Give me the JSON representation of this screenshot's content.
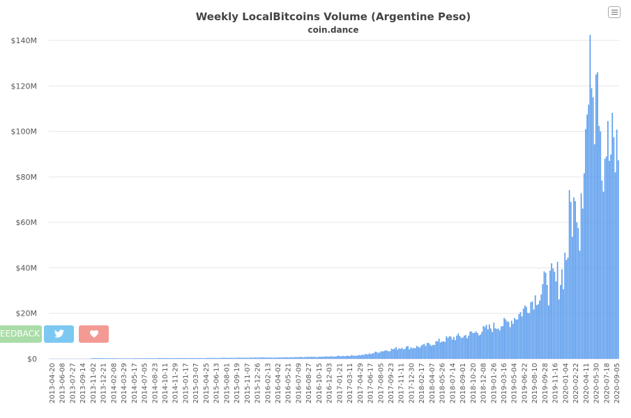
{
  "chart_data": {
    "type": "bar",
    "title": "Weekly LocalBitcoins Volume (Argentine Peso)",
    "subtitle": "coin.dance",
    "xlabel": "",
    "ylabel": "",
    "ylim": [
      0,
      140000000
    ],
    "y_ticks": [
      "$0",
      "$20M",
      "$40M",
      "$60M",
      "$80M",
      "$100M",
      "$120M",
      "$140M"
    ],
    "x_tick_labels": [
      "2013-04-20",
      "2013-06-08",
      "2013-07-27",
      "2013-09-14",
      "2013-11-02",
      "2013-12-21",
      "2014-02-08",
      "2014-03-29",
      "2014-05-17",
      "2014-07-05",
      "2014-08-23",
      "2014-10-11",
      "2014-11-29",
      "2015-01-17",
      "2015-03-07",
      "2015-04-25",
      "2015-06-13",
      "2015-08-01",
      "2015-09-19",
      "2015-11-07",
      "2015-12-26",
      "2016-02-13",
      "2016-04-02",
      "2016-05-21",
      "2016-07-09",
      "2016-08-27",
      "2016-10-15",
      "2016-12-03",
      "2017-01-21",
      "2017-03-11",
      "2017-04-29",
      "2017-06-17",
      "2017-08-05",
      "2017-09-23",
      "2017-11-11",
      "2017-12-30",
      "2018-02-17",
      "2018-04-07",
      "2018-05-26",
      "2018-07-14",
      "2018-09-01",
      "2018-10-20",
      "2018-12-08",
      "2019-01-26",
      "2019-03-16",
      "2019-05-04",
      "2019-06-22",
      "2019-08-10",
      "2019-09-28",
      "2019-11-16",
      "2020-01-04",
      "2020-02-22",
      "2020-04-11",
      "2020-05-30",
      "2020-07-18",
      "2020-09-05"
    ],
    "bar_color": "#5b9ded",
    "grid": true,
    "legend": "none",
    "anchors_week_index_to_value_millions": [
      [
        0,
        0
      ],
      [
        26,
        0
      ],
      [
        30,
        0.3
      ],
      [
        50,
        0.2
      ],
      [
        80,
        0.3
      ],
      [
        100,
        0.3
      ],
      [
        130,
        0.5
      ],
      [
        160,
        0.6
      ],
      [
        180,
        0.8
      ],
      [
        190,
        1.0
      ],
      [
        200,
        1.3
      ],
      [
        210,
        1.6
      ],
      [
        215,
        2.0
      ],
      [
        225,
        3.5
      ],
      [
        230,
        4.0
      ],
      [
        238,
        5.0
      ],
      [
        245,
        5.0
      ],
      [
        252,
        5.5
      ],
      [
        260,
        7.0
      ],
      [
        270,
        9.0
      ],
      [
        280,
        10.0
      ],
      [
        290,
        12.0
      ],
      [
        300,
        14.0
      ],
      [
        310,
        16.0
      ],
      [
        318,
        20.0
      ],
      [
        325,
        25.0
      ],
      [
        330,
        28.0
      ],
      [
        336,
        32.0
      ],
      [
        342,
        34.0
      ],
      [
        346,
        37.0
      ],
      [
        350,
        50.0
      ],
      [
        352,
        69.0
      ],
      [
        356,
        60.0
      ],
      [
        362,
        101.0
      ],
      [
        366,
        119.0
      ],
      [
        370,
        126.0
      ],
      [
        372,
        100.0
      ],
      [
        374,
        73.0
      ],
      [
        376,
        89.0
      ]
    ]
  },
  "ui": {
    "feedback_label": "FEEDBACK",
    "twitter_icon": "twitter-icon",
    "heart_icon": "heart-icon",
    "menu_icon": "hamburger-menu-icon"
  }
}
